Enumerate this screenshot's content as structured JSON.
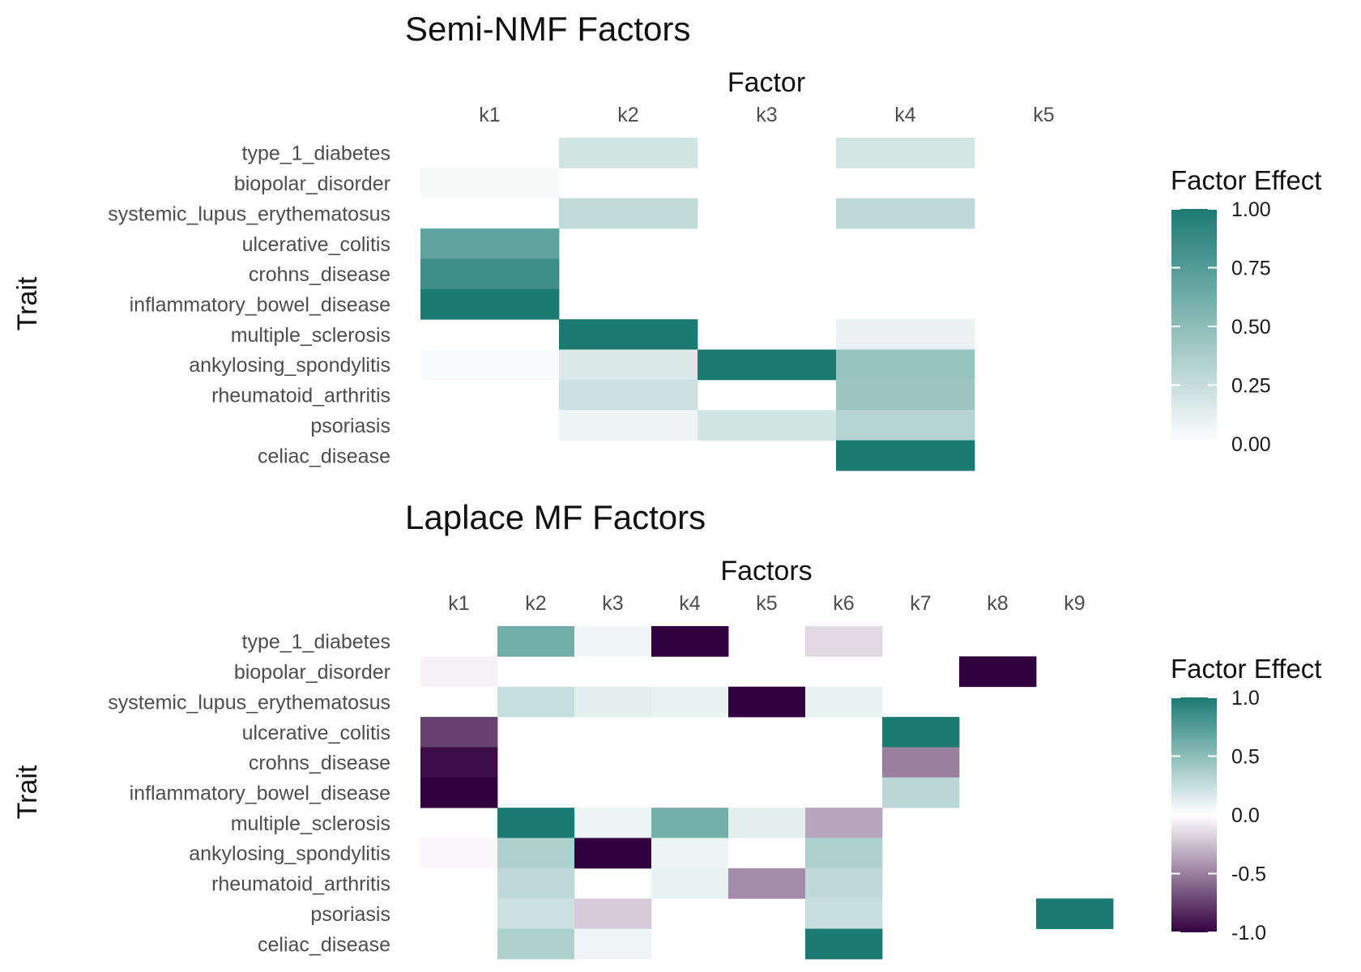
{
  "chart_data": [
    {
      "type": "heatmap",
      "title": "Semi-NMF Factors",
      "xlabel": "Factor",
      "ylabel": "Trait",
      "x_position": "top",
      "columns": [
        "k1",
        "k2",
        "k3",
        "k4",
        "k5"
      ],
      "rows": [
        "type_1_diabetes",
        "biopolar_disorder",
        "systemic_lupus_erythematosus",
        "ulcerative_colitis",
        "crohns_disease",
        "inflammatory_bowel_disease",
        "multiple_sclerosis",
        "ankylosing_spondylitis",
        "rheumatoid_arthritis",
        "psoriasis",
        "celiac_disease"
      ],
      "values": [
        [
          0.0,
          0.2,
          0.0,
          0.19,
          0.0
        ],
        [
          0.04,
          0.0,
          0.0,
          0.0,
          0.0
        ],
        [
          0.0,
          0.27,
          0.0,
          0.28,
          0.0
        ],
        [
          0.7,
          0.0,
          0.0,
          0.0,
          0.0
        ],
        [
          0.85,
          0.0,
          0.0,
          0.0,
          0.0
        ],
        [
          1.0,
          0.0,
          0.0,
          0.0,
          0.0
        ],
        [
          0.0,
          1.0,
          0.0,
          0.09,
          0.0
        ],
        [
          0.03,
          0.16,
          1.0,
          0.45,
          0.0
        ],
        [
          0.0,
          0.22,
          0.0,
          0.43,
          0.0
        ],
        [
          0.0,
          0.08,
          0.2,
          0.32,
          0.0
        ],
        [
          0.0,
          0.0,
          0.0,
          1.0,
          0.0
        ]
      ],
      "legend": {
        "title": "Factor Effect",
        "position": "right",
        "range": [
          0,
          1
        ],
        "ticks": [
          1.0,
          0.75,
          0.5,
          0.25,
          0.0
        ],
        "tick_labels": [
          "1.00",
          "0.75",
          "0.50",
          "0.25",
          "0.00"
        ],
        "colors": [
          "#ffffff",
          "#1b7b73"
        ]
      }
    },
    {
      "type": "heatmap",
      "title": "Laplace MF Factors",
      "xlabel": "Factors",
      "ylabel": "Trait",
      "x_position": "top",
      "columns": [
        "k1",
        "k2",
        "k3",
        "k4",
        "k5",
        "k6",
        "k7",
        "k8",
        "k9"
      ],
      "rows": [
        "type_1_diabetes",
        "biopolar_disorder",
        "systemic_lupus_erythematosus",
        "ulcerative_colitis",
        "crohns_disease",
        "inflammatory_bowel_disease",
        "multiple_sclerosis",
        "ankylosing_spondylitis",
        "rheumatoid_arthritis",
        "psoriasis",
        "celiac_disease"
      ],
      "values": [
        [
          0.0,
          0.62,
          0.07,
          -1.0,
          0.0,
          -0.15,
          0.0,
          0.0,
          0.0
        ],
        [
          -0.05,
          0.0,
          0.0,
          0.0,
          0.0,
          0.0,
          0.0,
          -1.0,
          0.0
        ],
        [
          0.0,
          0.25,
          0.12,
          0.1,
          -1.0,
          0.1,
          0.0,
          0.0,
          0.0
        ],
        [
          -0.75,
          0.0,
          0.0,
          0.0,
          0.0,
          0.0,
          1.0,
          0.0,
          0.0
        ],
        [
          -0.95,
          0.0,
          0.0,
          0.0,
          0.0,
          0.0,
          -0.5,
          0.0,
          0.0
        ],
        [
          -1.0,
          0.0,
          0.0,
          0.0,
          0.0,
          0.0,
          0.3,
          0.0,
          0.0
        ],
        [
          0.0,
          1.0,
          0.08,
          0.6,
          0.12,
          -0.35,
          0.0,
          0.0,
          0.0
        ],
        [
          -0.03,
          0.35,
          -1.0,
          0.08,
          0.0,
          0.35,
          0.0,
          0.0,
          0.0
        ],
        [
          0.0,
          0.28,
          0.0,
          0.1,
          -0.45,
          0.28,
          0.0,
          0.0,
          0.0
        ],
        [
          0.0,
          0.22,
          -0.2,
          0.0,
          0.0,
          0.25,
          0.0,
          0.0,
          1.0
        ],
        [
          0.0,
          0.35,
          0.07,
          0.0,
          0.0,
          1.0,
          0.0,
          0.0,
          0.0
        ]
      ],
      "legend": {
        "title": "Factor Effect",
        "position": "right",
        "range": [
          -1,
          1
        ],
        "ticks": [
          1.0,
          0.5,
          0.0,
          -0.5,
          -1.0
        ],
        "tick_labels": [
          "1.0",
          "0.5",
          "0.0",
          "-0.5",
          "-1.0"
        ],
        "colors": [
          "#33003f",
          "#ffffff",
          "#1b7b73"
        ]
      }
    }
  ]
}
